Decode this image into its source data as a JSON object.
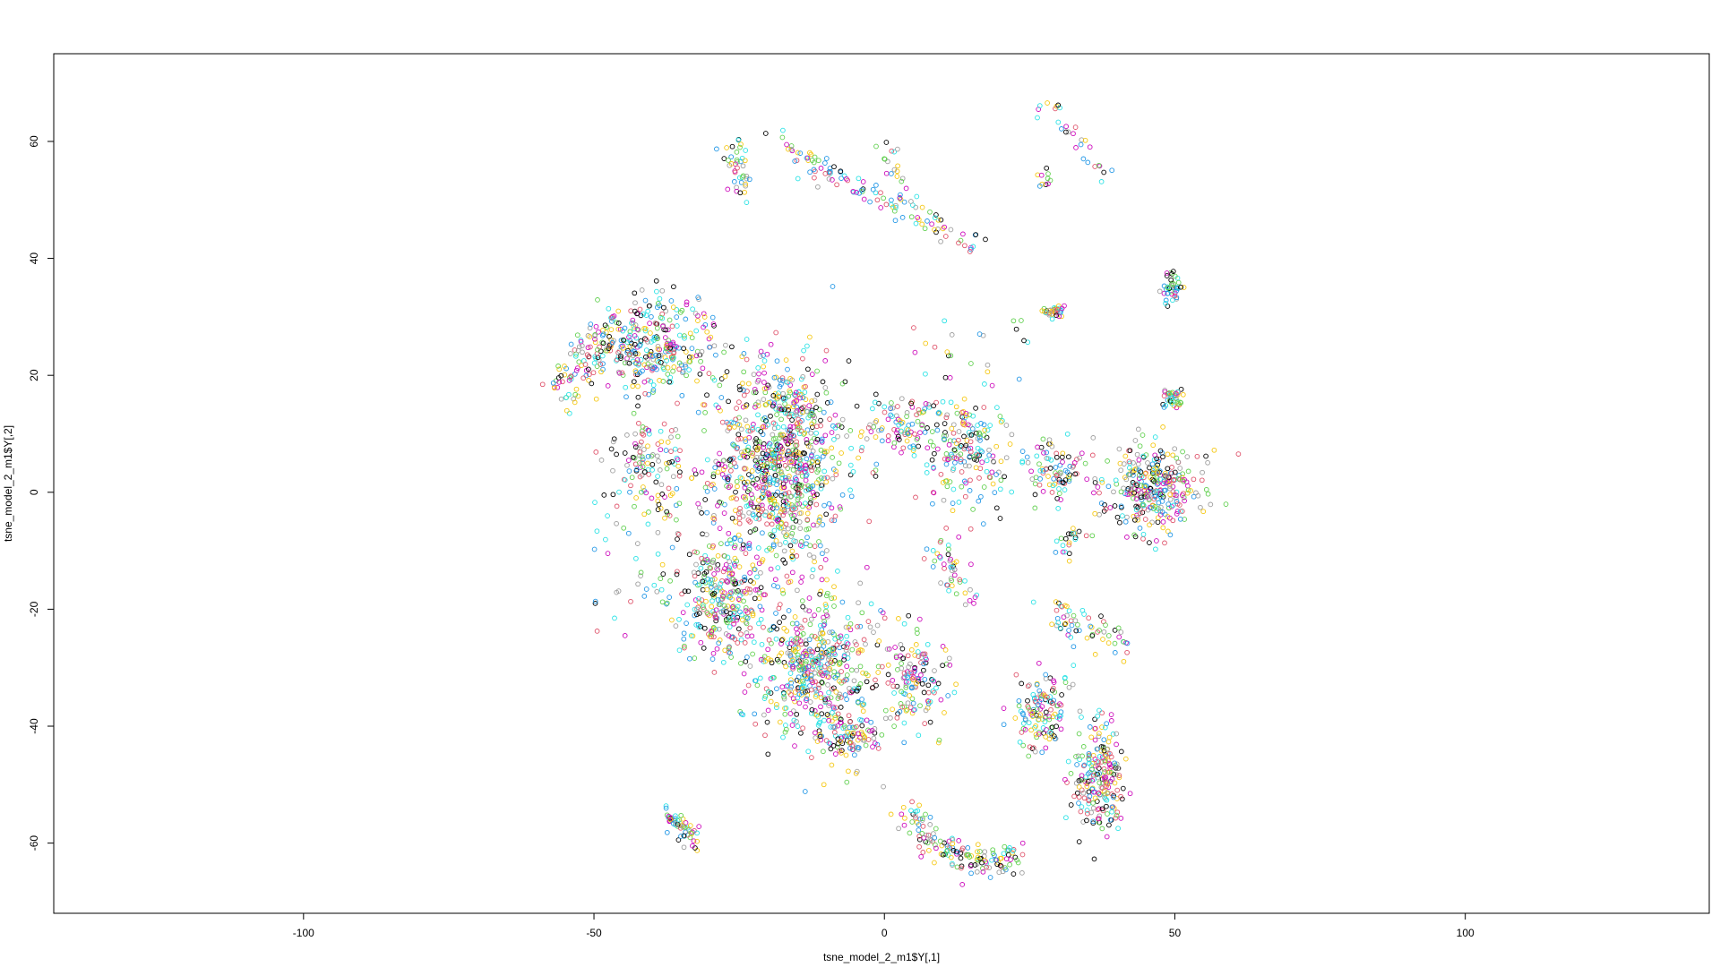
{
  "chart_data": {
    "type": "scatter",
    "title": "",
    "xlabel": "tsne_model_2_m1$Y[,1]",
    "ylabel": "tsne_model_2_m1$Y[,2]",
    "xlim": [
      -143,
      142
    ],
    "ylim": [
      -72,
      75
    ],
    "x_ticks": [
      -100,
      -50,
      0,
      50,
      100
    ],
    "y_ticks": [
      -60,
      -40,
      -20,
      0,
      20,
      40,
      60
    ],
    "grid": false,
    "legend": "none",
    "marker": "open-circle",
    "palette": [
      "#000000",
      "#df536b",
      "#61d04f",
      "#2297e6",
      "#28e2e5",
      "#cd0bbc",
      "#f5c710",
      "#9e9e9e"
    ],
    "clusters": [
      {
        "shape": "curve",
        "points": [
          [
            -18,
            61
          ],
          [
            -12,
            56
          ],
          [
            -5,
            52
          ],
          [
            2,
            49
          ],
          [
            9,
            46
          ],
          [
            16,
            42
          ]
        ],
        "spread": 1.1,
        "count": 110
      },
      {
        "shape": "curve",
        "points": [
          [
            -25,
            61
          ],
          [
            -25,
            57
          ],
          [
            -25,
            51
          ]
        ],
        "spread": 0.9,
        "count": 25
      },
      {
        "shape": "curve",
        "points": [
          [
            -28,
            59
          ],
          [
            -26,
            56
          ],
          [
            -24,
            54
          ]
        ],
        "spread": 0.9,
        "count": 15
      },
      {
        "shape": "curve",
        "points": [
          [
            -1,
            60
          ],
          [
            2,
            57
          ],
          [
            3,
            52
          ],
          [
            5,
            49
          ]
        ],
        "spread": 0.8,
        "count": 22
      },
      {
        "shape": "curve",
        "points": [
          [
            26,
            65
          ],
          [
            29,
            66
          ],
          [
            32,
            62
          ],
          [
            35,
            58
          ],
          [
            38,
            53
          ]
        ],
        "spread": 0.8,
        "count": 28
      },
      {
        "shape": "blob",
        "center": [
          27,
          53.5
        ],
        "r": [
          1.2,
          1.5
        ],
        "count": 10
      },
      {
        "shape": "blob",
        "center": [
          29.5,
          31
        ],
        "r": [
          1.7,
          1.6
        ],
        "count": 35
      },
      {
        "shape": "blob",
        "center": [
          49.5,
          35
        ],
        "r": [
          1.8,
          2.5
        ],
        "count": 40
      },
      {
        "shape": "blob",
        "center": [
          49.5,
          16
        ],
        "r": [
          1.5,
          1.5
        ],
        "count": 40
      },
      {
        "shape": "blob",
        "center": [
          -18,
          5
        ],
        "r": [
          10,
          16
        ],
        "count": 900
      },
      {
        "shape": "blob",
        "center": [
          -40,
          24
        ],
        "r": [
          10,
          6
        ],
        "count": 260
      },
      {
        "shape": "curve",
        "points": [
          [
            -56,
            15
          ],
          [
            -53,
            20
          ],
          [
            -50,
            25
          ],
          [
            -45,
            29
          ],
          [
            -38,
            32
          ],
          [
            -30,
            29
          ]
        ],
        "spread": 2.2,
        "count": 150
      },
      {
        "shape": "blob",
        "center": [
          -40,
          5
        ],
        "r": [
          5,
          7
        ],
        "count": 90
      },
      {
        "shape": "blob",
        "center": [
          -28,
          -18
        ],
        "r": [
          7,
          10
        ],
        "count": 300
      },
      {
        "shape": "blob",
        "center": [
          -12,
          -30
        ],
        "r": [
          9,
          12
        ],
        "count": 500
      },
      {
        "shape": "blob",
        "center": [
          -6,
          -42
        ],
        "r": [
          5,
          5
        ],
        "count": 90
      },
      {
        "shape": "blob",
        "center": [
          5,
          -32
        ],
        "r": [
          5,
          9
        ],
        "count": 140
      },
      {
        "shape": "blob",
        "center": [
          3,
          11
        ],
        "r": [
          7,
          5
        ],
        "count": 110
      },
      {
        "shape": "blob",
        "center": [
          14,
          7
        ],
        "r": [
          6,
          9
        ],
        "count": 170
      },
      {
        "shape": "curve",
        "points": [
          [
            8,
            -10
          ],
          [
            12,
            -14
          ],
          [
            15,
            -18
          ]
        ],
        "spread": 1.4,
        "count": 45
      },
      {
        "shape": "blob",
        "center": [
          29,
          4
        ],
        "r": [
          5,
          4
        ],
        "count": 85
      },
      {
        "shape": "blob",
        "center": [
          46,
          1
        ],
        "r": [
          8,
          7
        ],
        "count": 320
      },
      {
        "shape": "curve",
        "points": [
          [
            28,
            -20
          ],
          [
            32,
            -22
          ],
          [
            38,
            -24
          ],
          [
            42,
            -28
          ]
        ],
        "spread": 1.3,
        "count": 60
      },
      {
        "shape": "curve",
        "points": [
          [
            30,
            -11
          ],
          [
            32,
            -8
          ],
          [
            34,
            -7
          ]
        ],
        "spread": 1.0,
        "count": 22
      },
      {
        "shape": "blob",
        "center": [
          27,
          -37
        ],
        "r": [
          4,
          6
        ],
        "count": 130
      },
      {
        "shape": "blob",
        "center": [
          37,
          -49
        ],
        "r": [
          4,
          8
        ],
        "count": 220
      },
      {
        "shape": "curve",
        "points": [
          [
            -38,
            -55
          ],
          [
            -35,
            -57
          ],
          [
            -32,
            -60
          ]
        ],
        "spread": 1.0,
        "count": 55
      },
      {
        "shape": "curve",
        "points": [
          [
            4,
            -55
          ],
          [
            8,
            -59
          ],
          [
            13,
            -62
          ],
          [
            18,
            -63
          ],
          [
            23,
            -62
          ]
        ],
        "spread": 1.5,
        "count": 150
      },
      {
        "shape": "scatter",
        "box": [
          [
            -50,
            10
          ],
          [
            -35,
            -25
          ]
        ],
        "count": 70
      },
      {
        "shape": "scatter",
        "box": [
          [
            5,
            30
          ],
          [
            25,
            18
          ]
        ],
        "count": 25
      }
    ]
  }
}
